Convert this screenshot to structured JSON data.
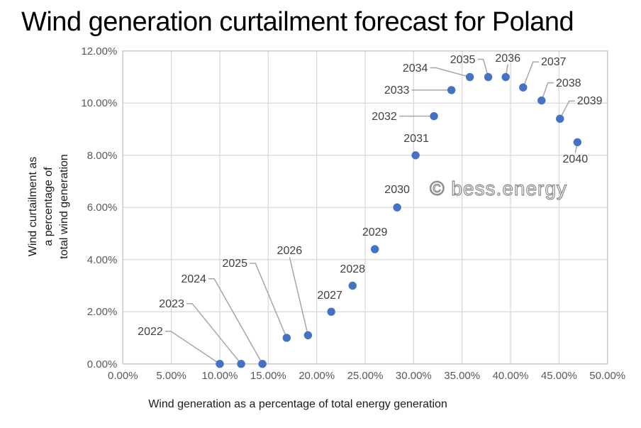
{
  "chart": {
    "title": "Wind generation curtailment forecast for Poland",
    "watermark": "© bess.energy"
  },
  "chart_data": {
    "type": "scatter",
    "title": "Wind generation curtailment forecast for Poland",
    "xlabel": "Wind generation as a percentage of total energy generation",
    "ylabel": "Wind curtailment as a percentage of total wind generation",
    "ylabel_lines": [
      "Wind curtailment as",
      "a percentage of",
      "total wind generation"
    ],
    "xlim": [
      0,
      50
    ],
    "ylim": [
      0,
      12
    ],
    "x_ticks": [
      0,
      5,
      10,
      15,
      20,
      25,
      30,
      35,
      40,
      45,
      50
    ],
    "x_tick_labels": [
      "0.00%",
      "5.00%",
      "10.00%",
      "15.00%",
      "20.00%",
      "25.00%",
      "30.00%",
      "35.00%",
      "40.00%",
      "45.00%",
      "50.00%"
    ],
    "y_ticks": [
      0,
      2,
      4,
      6,
      8,
      10,
      12
    ],
    "y_tick_labels": [
      "0.00%",
      "2.00%",
      "4.00%",
      "6.00%",
      "8.00%",
      "10.00%",
      "12.00%"
    ],
    "grid": true,
    "legend": "none",
    "units": "percent",
    "points": [
      {
        "year": "2022",
        "x": 10.0,
        "y": 0.0
      },
      {
        "year": "2023",
        "x": 12.2,
        "y": 0.0
      },
      {
        "year": "2024",
        "x": 14.4,
        "y": 0.0
      },
      {
        "year": "2025",
        "x": 16.9,
        "y": 1.0
      },
      {
        "year": "2026",
        "x": 19.1,
        "y": 1.1
      },
      {
        "year": "2027",
        "x": 21.5,
        "y": 2.0
      },
      {
        "year": "2028",
        "x": 23.7,
        "y": 3.0
      },
      {
        "year": "2029",
        "x": 26.0,
        "y": 4.4
      },
      {
        "year": "2030",
        "x": 28.3,
        "y": 6.0
      },
      {
        "year": "2031",
        "x": 30.2,
        "y": 8.0
      },
      {
        "year": "2032",
        "x": 32.1,
        "y": 9.5
      },
      {
        "year": "2033",
        "x": 33.9,
        "y": 10.5
      },
      {
        "year": "2034",
        "x": 35.8,
        "y": 11.0
      },
      {
        "year": "2035",
        "x": 37.7,
        "y": 11.0
      },
      {
        "year": "2036",
        "x": 39.5,
        "y": 11.0
      },
      {
        "year": "2037",
        "x": 41.3,
        "y": 10.6
      },
      {
        "year": "2038",
        "x": 43.2,
        "y": 10.1
      },
      {
        "year": "2039",
        "x": 45.1,
        "y": 9.4
      },
      {
        "year": "2040",
        "x": 46.9,
        "y": 8.5
      }
    ]
  },
  "layout_hints": {
    "marker_color": "#4472C4",
    "grid_color": "#D9D9D9",
    "border_color": "#C9C9C9",
    "leader_color": "#A6A6A6",
    "tick_color": "#595959",
    "point_label_color": "#404040",
    "label_offsets": {
      "2022": {
        "dx": -98,
        "dy": -46,
        "leader": true
      },
      "2023": {
        "dx": -98,
        "dy": -85,
        "leader": true
      },
      "2024": {
        "dx": -97,
        "dy": -120,
        "leader": true
      },
      "2025": {
        "dx": -73,
        "dy": -105,
        "leader": true
      },
      "2026": {
        "dx": -26,
        "dy": -119,
        "leader": true,
        "anchor": "bottom"
      },
      "2027": {
        "dx": -2,
        "dy": -23,
        "leader": false
      },
      "2028": {
        "dx": 0,
        "dy": -23,
        "leader": false
      },
      "2029": {
        "dx": 0,
        "dy": -24,
        "leader": false
      },
      "2030": {
        "dx": 0,
        "dy": -25,
        "leader": false
      },
      "2031": {
        "dx": 1,
        "dy": -24,
        "leader": false
      },
      "2032": {
        "dx": -70,
        "dy": 0,
        "leader": true
      },
      "2033": {
        "dx": -77,
        "dy": 0,
        "leader": true
      },
      "2034": {
        "dx": -77,
        "dy": -13,
        "leader": true
      },
      "2035": {
        "dx": -36,
        "dy": -25,
        "leader": true
      },
      "2036": {
        "dx": 3,
        "dy": -27,
        "leader": true,
        "anchor": "bottom"
      },
      "2037": {
        "dx": 43,
        "dy": -36,
        "leader": true
      },
      "2038": {
        "dx": 38,
        "dy": -25,
        "leader": true
      },
      "2039": {
        "dx": 42,
        "dy": -25,
        "leader": true
      },
      "2040": {
        "dx": -3,
        "dy": 24,
        "leader": true,
        "anchor": "top"
      }
    }
  }
}
